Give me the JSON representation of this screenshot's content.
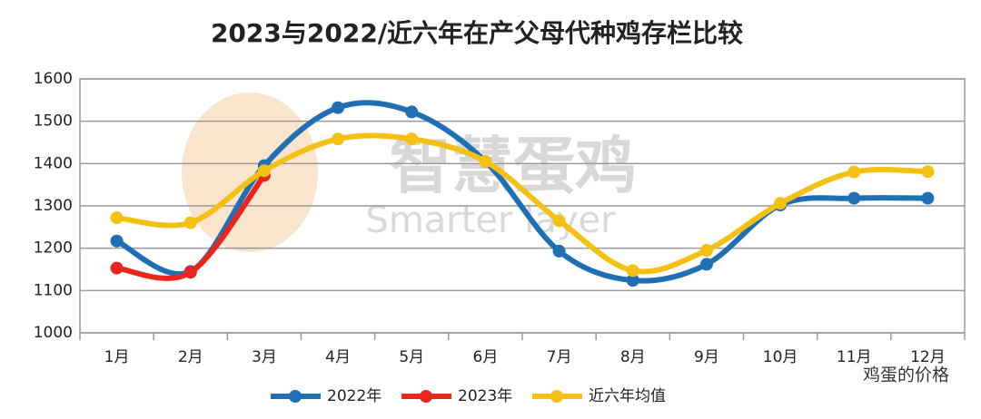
{
  "chart_data": {
    "type": "line",
    "title": "2023与2022/近六年在产父母代种鸡存栏比较",
    "categories": [
      "1月",
      "2月",
      "3月",
      "4月",
      "5月",
      "6月",
      "7月",
      "8月",
      "9月",
      "10月",
      "11月",
      "12月"
    ],
    "series": [
      {
        "name": "2022年",
        "color": "#1f6fb4",
        "values": [
          1217,
          1145,
          1395,
          1532,
          1522,
          1405,
          1193,
          1124,
          1162,
          1302,
          1318,
          1318
        ]
      },
      {
        "name": "2023年",
        "color": "#e8261e",
        "values": [
          1153,
          1143,
          1372,
          null,
          null,
          null,
          null,
          null,
          null,
          null,
          null,
          null
        ]
      },
      {
        "name": "近六年均值",
        "color": "#f5c014",
        "values": [
          1272,
          1260,
          1383,
          1458,
          1458,
          1405,
          1265,
          1147,
          1195,
          1306,
          1380,
          1381
        ]
      }
    ],
    "ylim": [
      1000,
      1600
    ],
    "yticks": [
      1000,
      1100,
      1200,
      1300,
      1400,
      1500,
      1600
    ],
    "grid": true,
    "smooth": true,
    "legend": "bottom",
    "watermark": [
      "智慧蛋鸡",
      "Smarter layer"
    ],
    "source": "鸡蛋的价格"
  }
}
